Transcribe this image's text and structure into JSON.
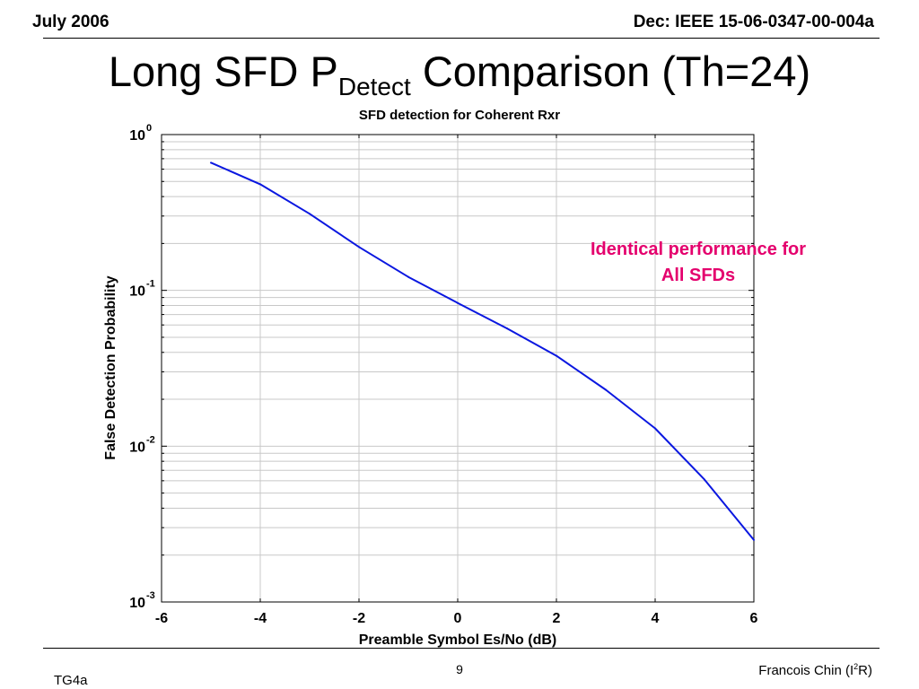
{
  "header": {
    "left": "July 2006",
    "right": "Dec: IEEE 15-06-0347-00-004a"
  },
  "slide_title": {
    "prefix": "Long SFD P",
    "subscript": "Detect",
    "suffix": " Comparison (Th=24)"
  },
  "annotation": {
    "line1": "Identical performance for",
    "line2": "All SFDs"
  },
  "footer": {
    "left": "TG4a",
    "page": "9",
    "author_prefix": "Francois Chin (I",
    "author_sup": "2",
    "author_suffix": "R)"
  },
  "colors": {
    "series": "#0a17e0",
    "annotation": "#e4006d"
  },
  "chart_data": {
    "type": "line",
    "title": "SFD detection for Coherent Rxr",
    "xlabel": "Preamble Symbol Es/No (dB)",
    "ylabel": "False Detection Probability",
    "xlim": [
      -6,
      6
    ],
    "ylim": [
      0.001,
      1
    ],
    "yscale": "log",
    "grid": true,
    "x_ticks": [
      "-6",
      "-4",
      "-2",
      "0",
      "2",
      "4",
      "6"
    ],
    "y_ticks": [
      {
        "base": "10",
        "exp": "0"
      },
      {
        "base": "10",
        "exp": "-1"
      },
      {
        "base": "10",
        "exp": "-2"
      },
      {
        "base": "10",
        "exp": "-3"
      }
    ],
    "series": [
      {
        "x": [
          -5,
          -4,
          -3,
          -2,
          -1,
          0,
          1,
          2,
          3,
          4,
          5,
          6
        ],
        "values": [
          0.66,
          0.48,
          0.31,
          0.19,
          0.122,
          0.083,
          0.057,
          0.038,
          0.023,
          0.013,
          0.0061,
          0.0025
        ]
      }
    ]
  }
}
